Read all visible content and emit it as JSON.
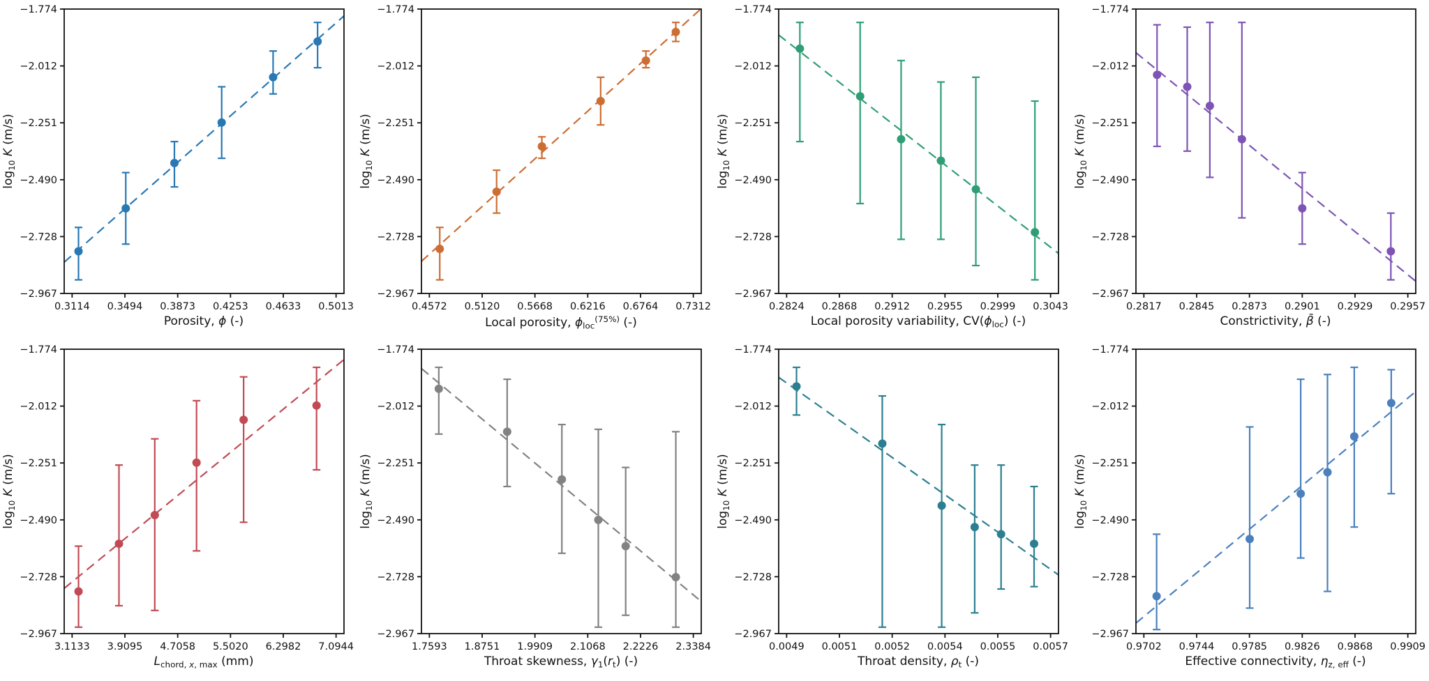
{
  "figure": {
    "background": "#ffffff",
    "text_color": "#111111",
    "ylabel_text": "log10 K (m/s)",
    "ylabel_parts": [
      {
        "t": "log"
      },
      {
        "t": "10",
        "sub": true
      },
      {
        "t": " "
      },
      {
        "t": "K",
        "i": true
      },
      {
        "t": " (m/s)"
      }
    ],
    "y_axis": {
      "tick_labels": [
        "−1.774",
        "−2.012",
        "−2.251",
        "−2.490",
        "−2.728",
        "−2.967"
      ],
      "min": -2.967,
      "max": -1.774
    }
  },
  "chart_data": [
    {
      "type": "scatter",
      "name": "porosity",
      "xlabel_text": "Porosity, ϕ (-)",
      "xlabel_parts": [
        {
          "t": "Porosity, "
        },
        {
          "t": "ϕ",
          "i": true
        },
        {
          "t": " (-)"
        }
      ],
      "ylabel_text": "log10 K (m/s)",
      "color": "#2878b4",
      "trend": "linear-dashed",
      "x_axis": {
        "tick_labels": [
          "0.3114",
          "0.3494",
          "0.3873",
          "0.4253",
          "0.4633",
          "0.5013"
        ],
        "min": 0.3114,
        "max": 0.5013,
        "margin_frac": 0.03
      },
      "x": [
        0.316,
        0.35,
        0.385,
        0.419,
        0.456,
        0.488
      ],
      "y": [
        -2.79,
        -2.61,
        -2.42,
        -2.25,
        -2.06,
        -1.91
      ],
      "y_err_low": [
        -2.91,
        -2.76,
        -2.52,
        -2.4,
        -2.13,
        -2.02
      ],
      "y_err_high": [
        -2.69,
        -2.46,
        -2.33,
        -2.1,
        -1.95,
        -1.83
      ]
    },
    {
      "type": "scatter",
      "name": "local-porosity",
      "xlabel_text": "Local porosity, ϕloc(75%) (-)",
      "xlabel_parts": [
        {
          "t": "Local porosity, "
        },
        {
          "t": "ϕ",
          "i": true
        },
        {
          "t": "loc",
          "sub": true
        },
        {
          "t": "(75%)",
          "sup": true
        },
        {
          "t": " (-)"
        }
      ],
      "ylabel_text": "log10 K (m/s)",
      "color": "#cc6d33",
      "trend": "linear-dashed",
      "x_axis": {
        "tick_labels": [
          "0.4572",
          "0.5120",
          "0.5668",
          "0.6216",
          "0.6764",
          "0.7312"
        ],
        "min": 0.4572,
        "max": 0.7312,
        "margin_frac": 0.03
      },
      "x": [
        0.468,
        0.527,
        0.574,
        0.635,
        0.682,
        0.713
      ],
      "y": [
        -2.78,
        -2.54,
        -2.35,
        -2.16,
        -1.99,
        -1.87
      ],
      "y_err_low": [
        -2.91,
        -2.63,
        -2.4,
        -2.26,
        -2.02,
        -1.91
      ],
      "y_err_high": [
        -2.69,
        -2.45,
        -2.31,
        -2.06,
        -1.95,
        -1.83
      ]
    },
    {
      "type": "scatter",
      "name": "local-porosity-variability",
      "xlabel_text": "Local porosity variability, CV(ϕloc) (-)",
      "xlabel_parts": [
        {
          "t": "Local porosity variability, CV("
        },
        {
          "t": "ϕ",
          "i": true
        },
        {
          "t": "loc",
          "sub": true
        },
        {
          "t": ") (-)"
        }
      ],
      "ylabel_text": "log10 K (m/s)",
      "color": "#2f9e75",
      "trend": "linear-dashed",
      "x_axis": {
        "tick_labels": [
          "0.2824",
          "0.2868",
          "0.2912",
          "0.2955",
          "0.2999",
          "0.3043"
        ],
        "min": 0.2824,
        "max": 0.3043,
        "margin_frac": 0.03
      },
      "x": [
        0.2835,
        0.2885,
        0.2919,
        0.2952,
        0.2981,
        0.303
      ],
      "y": [
        -1.94,
        -2.14,
        -2.32,
        -2.41,
        -2.53,
        -2.71
      ],
      "y_err_low": [
        -2.33,
        -2.59,
        -2.74,
        -2.74,
        -2.85,
        -2.91
      ],
      "y_err_high": [
        -1.83,
        -1.83,
        -1.99,
        -2.08,
        -2.06,
        -2.16
      ]
    },
    {
      "type": "scatter",
      "name": "constrictivity",
      "xlabel_text": "Constrictivity, β̄ (-)",
      "xlabel_parts": [
        {
          "t": "Constrictivity, "
        },
        {
          "t": "β̄",
          "i": true
        },
        {
          "t": " (-)"
        }
      ],
      "ylabel_text": "log10 K (m/s)",
      "color": "#7d54b5",
      "trend": "linear-dashed",
      "x_axis": {
        "tick_labels": [
          "0.2817",
          "0.2845",
          "0.2873",
          "0.2901",
          "0.2929",
          "0.2957"
        ],
        "min": 0.2817,
        "max": 0.2957,
        "margin_frac": 0.03
      },
      "x": [
        0.2824,
        0.284,
        0.2852,
        0.2869,
        0.2901,
        0.2948
      ],
      "y": [
        -2.05,
        -2.1,
        -2.18,
        -2.32,
        -2.61,
        -2.79
      ],
      "y_err_low": [
        -2.35,
        -2.37,
        -2.48,
        -2.65,
        -2.76,
        -2.91
      ],
      "y_err_high": [
        -1.84,
        -1.85,
        -1.83,
        -1.83,
        -2.46,
        -2.63
      ]
    },
    {
      "type": "scatter",
      "name": "max-chord-length",
      "xlabel_text": "Lchord, x, max (mm)",
      "xlabel_parts": [
        {
          "t": "L",
          "i": true
        },
        {
          "t": "chord, ",
          "sub": true
        },
        {
          "t": "x",
          "sub": true,
          "i": true
        },
        {
          "t": ", max",
          "sub": true
        },
        {
          "t": " (mm)"
        }
      ],
      "ylabel_text": "log10 K (m/s)",
      "color": "#c14a54",
      "trend": "linear-dashed",
      "x_axis": {
        "tick_labels": [
          "3.1133",
          "3.9095",
          "4.7058",
          "5.5020",
          "6.2982",
          "7.0944"
        ],
        "min": 3.1133,
        "max": 7.0944,
        "margin_frac": 0.03
      },
      "x": [
        3.21,
        3.82,
        4.36,
        4.99,
        5.7,
        6.8
      ],
      "y": [
        -2.79,
        -2.59,
        -2.47,
        -2.25,
        -2.07,
        -2.01
      ],
      "y_err_low": [
        -2.94,
        -2.85,
        -2.87,
        -2.62,
        -2.5,
        -2.28
      ],
      "y_err_high": [
        -2.6,
        -2.26,
        -2.15,
        -1.99,
        -1.89,
        -1.85
      ]
    },
    {
      "type": "scatter",
      "name": "throat-skewness",
      "xlabel_text": "Throat skewness, γ1(rt) (-)",
      "xlabel_parts": [
        {
          "t": "Throat skewness, "
        },
        {
          "t": "γ",
          "i": true
        },
        {
          "t": "1",
          "sub": true
        },
        {
          "t": "("
        },
        {
          "t": "r",
          "i": true
        },
        {
          "t": "t",
          "sub": true
        },
        {
          "t": ") (-)"
        }
      ],
      "ylabel_text": "log10 K (m/s)",
      "color": "#828282",
      "trend": "linear-dashed",
      "x_axis": {
        "tick_labels": [
          "1.7593",
          "1.8751",
          "1.9909",
          "2.1068",
          "2.2226",
          "2.3384"
        ],
        "min": 1.7593,
        "max": 2.3384,
        "margin_frac": 0.03
      },
      "x": [
        1.78,
        1.93,
        2.05,
        2.13,
        2.19,
        2.3
      ],
      "y": [
        -1.94,
        -2.12,
        -2.32,
        -2.49,
        -2.6,
        -2.73
      ],
      "y_err_low": [
        -2.13,
        -2.35,
        -2.63,
        -2.94,
        -2.89,
        -2.94
      ],
      "y_err_high": [
        -1.85,
        -1.9,
        -2.09,
        -2.11,
        -2.27,
        -2.12
      ]
    },
    {
      "type": "scatter",
      "name": "throat-density",
      "xlabel_text": "Throat density, ρt (-)",
      "xlabel_parts": [
        {
          "t": "Throat density, "
        },
        {
          "t": "ρ",
          "i": true
        },
        {
          "t": "t",
          "sub": true
        },
        {
          "t": " (-)"
        }
      ],
      "ylabel_text": "log10 K (m/s)",
      "color": "#2b7f90",
      "trend": "linear-dashed",
      "x_axis": {
        "tick_labels": [
          "0.0049",
          "0.0051",
          "0.0052",
          "0.0054",
          "0.0055",
          "0.0057"
        ],
        "min": 0.0049,
        "max": 0.0057,
        "margin_frac": 0.03
      },
      "x": [
        0.00493,
        0.00519,
        0.00537,
        0.00547,
        0.00555,
        0.00565
      ],
      "y": [
        -1.93,
        -2.17,
        -2.43,
        -2.52,
        -2.55,
        -2.59
      ],
      "y_err_low": [
        -2.05,
        -2.94,
        -2.94,
        -2.88,
        -2.78,
        -2.77
      ],
      "y_err_high": [
        -1.85,
        -1.97,
        -2.09,
        -2.26,
        -2.26,
        -2.35
      ]
    },
    {
      "type": "scatter",
      "name": "effective-connectivity",
      "xlabel_text": "Effective connectivity, ηz, eff (-)",
      "xlabel_parts": [
        {
          "t": "Effective connectivity, "
        },
        {
          "t": "η",
          "i": true
        },
        {
          "t": "z, eff",
          "sub": true
        },
        {
          "t": " (-)"
        }
      ],
      "ylabel_text": "log10 K (m/s)",
      "color": "#4b80bd",
      "trend": "linear-dashed",
      "x_axis": {
        "tick_labels": [
          "0.9702",
          "0.9744",
          "0.9785",
          "0.9826",
          "0.9868",
          "0.9909"
        ],
        "min": 0.9702,
        "max": 0.9909,
        "margin_frac": 0.03
      },
      "x": [
        0.9712,
        0.9785,
        0.9825,
        0.9846,
        0.9867,
        0.9896
      ],
      "y": [
        -2.81,
        -2.57,
        -2.38,
        -2.29,
        -2.14,
        -2.0
      ],
      "y_err_low": [
        -2.95,
        -2.86,
        -2.65,
        -2.79,
        -2.52,
        -2.38
      ],
      "y_err_high": [
        -2.55,
        -2.1,
        -1.9,
        -1.88,
        -1.85,
        -1.86
      ]
    }
  ]
}
